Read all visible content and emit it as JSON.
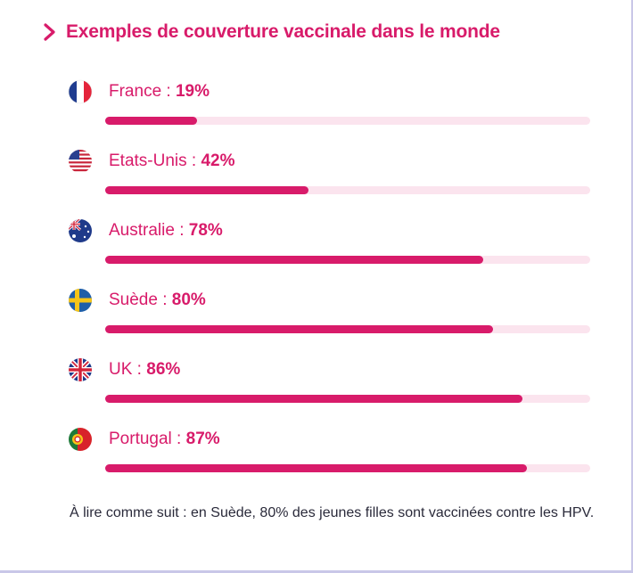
{
  "header": {
    "title": "Exemples de couverture vaccinale dans le monde",
    "chevron_icon": "chevron-right-icon",
    "accent_color": "#d81b6a"
  },
  "chart_data": {
    "type": "bar",
    "orientation": "horizontal",
    "title": "Exemples de couverture vaccinale dans le monde",
    "categories": [
      "France",
      "Etats-Unis",
      "Australie",
      "Suède",
      "UK",
      "Portugal"
    ],
    "values": [
      19,
      42,
      78,
      80,
      86,
      87
    ],
    "value_labels": [
      "19%",
      "42%",
      "78%",
      "80%",
      "86%",
      "87%"
    ],
    "separator": " : ",
    "flags": [
      "france-flag-icon",
      "usa-flag-icon",
      "australia-flag-icon",
      "sweden-flag-icon",
      "uk-flag-icon",
      "portugal-flag-icon"
    ],
    "xlim": [
      0,
      100
    ],
    "unit": "%",
    "bar_color": "#d81b6a",
    "track_color": "#fbe4ee"
  },
  "footer": {
    "caption": "À lire comme suit : en Suède, 80% des jeunes filles sont vaccinées contre les HPV."
  }
}
